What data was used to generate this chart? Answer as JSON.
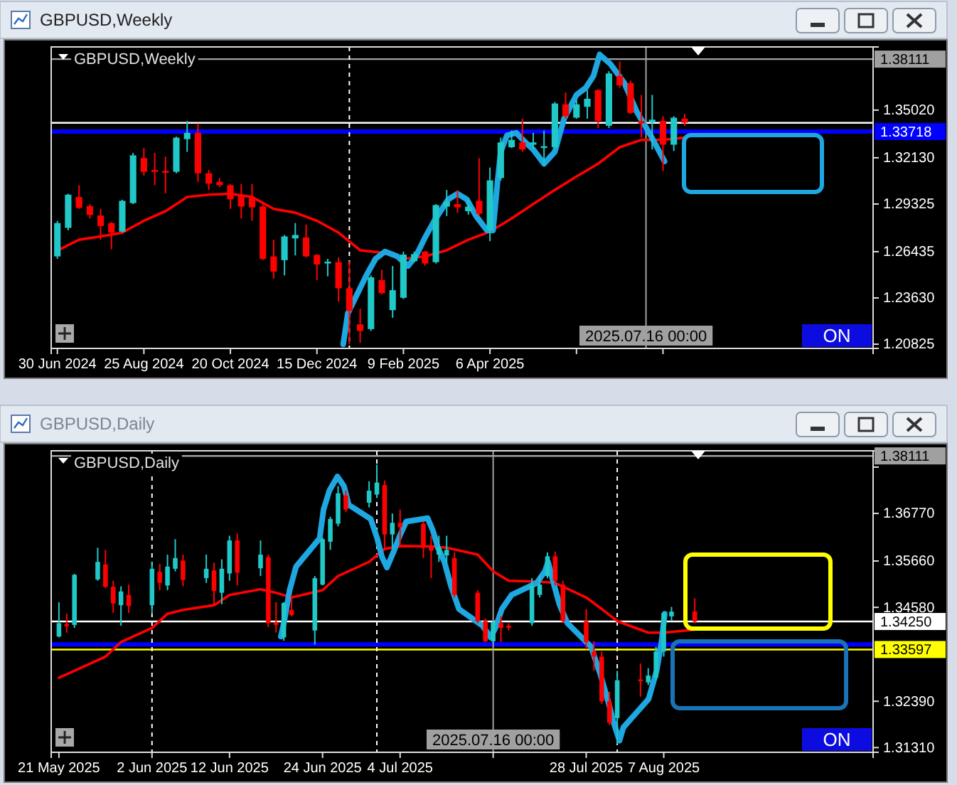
{
  "chart_data": [
    {
      "type": "candlestick",
      "title": "GBPUSD,Weekly",
      "x": [
        "2024-06-30",
        "2024-07-07",
        "2024-07-14",
        "2024-07-21",
        "2024-07-28",
        "2024-08-04",
        "2024-08-11",
        "2024-08-18",
        "2024-08-25",
        "2024-09-01",
        "2024-09-08",
        "2024-09-15",
        "2024-09-22",
        "2024-09-29",
        "2024-10-06",
        "2024-10-13",
        "2024-10-20",
        "2024-10-27",
        "2024-11-03",
        "2024-11-10",
        "2024-11-17",
        "2024-11-24",
        "2024-12-01",
        "2024-12-08",
        "2024-12-15",
        "2024-12-22",
        "2024-12-29",
        "2025-01-05",
        "2025-01-12",
        "2025-01-19",
        "2025-01-26",
        "2025-02-02",
        "2025-02-09",
        "2025-02-16",
        "2025-02-23",
        "2025-03-02",
        "2025-03-09",
        "2025-03-16",
        "2025-03-23",
        "2025-03-30",
        "2025-04-06",
        "2025-04-13",
        "2025-04-20",
        "2025-04-27",
        "2025-05-04",
        "2025-05-11",
        "2025-05-18",
        "2025-05-25",
        "2025-06-01",
        "2025-06-08",
        "2025-06-15",
        "2025-06-22",
        "2025-06-29",
        "2025-07-06",
        "2025-07-13",
        "2025-07-20",
        "2025-07-27",
        "2025-08-03",
        "2025-08-10"
      ],
      "ohlc": [
        [
          1.2615,
          1.283,
          1.26,
          1.2817
        ],
        [
          1.2788,
          1.2995,
          1.2773,
          1.2989
        ],
        [
          1.2975,
          1.3047,
          1.2903,
          1.2909
        ],
        [
          1.292,
          1.2932,
          1.2845,
          1.2866
        ],
        [
          1.2863,
          1.2903,
          1.2716,
          1.2799
        ],
        [
          1.2817,
          1.2823,
          1.2658,
          1.2759
        ],
        [
          1.2765,
          1.2958,
          1.2759,
          1.2952
        ],
        [
          1.2938,
          1.3243,
          1.2932,
          1.3228
        ],
        [
          1.3211,
          1.3272,
          1.3104,
          1.3128
        ],
        [
          1.3139,
          1.3243,
          1.3047,
          1.3128
        ],
        [
          1.3133,
          1.322,
          1.2998,
          1.3122
        ],
        [
          1.3128,
          1.3341,
          1.3119,
          1.3335
        ],
        [
          1.3326,
          1.3436,
          1.3249,
          1.3364
        ],
        [
          1.3364,
          1.3421,
          1.3067,
          1.3119
        ],
        [
          1.3119,
          1.3139,
          1.3018,
          1.3056
        ],
        [
          1.3067,
          1.309,
          1.3035,
          1.3047
        ],
        [
          1.3047,
          1.3053,
          1.2903,
          1.2961
        ],
        [
          1.2989,
          1.3053,
          1.2845,
          1.2917
        ],
        [
          1.2975,
          1.3053,
          1.2831,
          1.2912
        ],
        [
          1.2917,
          1.2932,
          1.2592,
          1.26
        ],
        [
          1.2615,
          1.2716,
          1.248,
          1.2523
        ],
        [
          1.2592,
          1.2745,
          1.25,
          1.2736
        ],
        [
          1.2724,
          1.2817,
          1.2621,
          1.2745
        ],
        [
          1.273,
          1.2808,
          1.2609,
          1.2615
        ],
        [
          1.2624,
          1.2629,
          1.2471,
          1.2566
        ],
        [
          1.2572,
          1.26,
          1.2494,
          1.2583
        ],
        [
          1.258,
          1.2609,
          1.2341,
          1.2422
        ],
        [
          1.2422,
          1.2586,
          1.2082,
          1.2284
        ],
        [
          1.2203,
          1.2298,
          1.2091,
          1.2163
        ],
        [
          1.2174,
          1.25,
          1.2163,
          1.2488
        ],
        [
          1.2471,
          1.2534,
          1.2385,
          1.2393
        ],
        [
          1.2289,
          1.2557,
          1.2243,
          1.241
        ],
        [
          1.2364,
          1.2644,
          1.2356,
          1.2626
        ],
        [
          1.2586,
          1.2644,
          1.258,
          1.2629
        ],
        [
          1.2644,
          1.2649,
          1.2557,
          1.2572
        ],
        [
          1.258,
          1.2932,
          1.2572,
          1.2926
        ],
        [
          1.2917,
          1.3018,
          1.286,
          1.2946
        ],
        [
          1.2932,
          1.3018,
          1.288,
          1.2912
        ],
        [
          1.2889,
          1.2961,
          1.2868,
          1.2917
        ],
        [
          1.2952,
          1.3211,
          1.286,
          1.2874
        ],
        [
          1.2773,
          1.3154,
          1.2707,
          1.3076
        ],
        [
          1.309,
          1.3335,
          1.3076,
          1.3306
        ],
        [
          1.3277,
          1.3378,
          1.3272,
          1.3321
        ],
        [
          1.3306,
          1.345,
          1.3249,
          1.3263
        ],
        [
          1.3292,
          1.3364,
          1.3263,
          1.3306
        ],
        [
          1.3272,
          1.3378,
          1.3162,
          1.3283
        ],
        [
          1.3277,
          1.3551,
          1.3272,
          1.3542
        ],
        [
          1.3537,
          1.3609,
          1.345,
          1.3465
        ],
        [
          1.3456,
          1.3565,
          1.345,
          1.3537
        ],
        [
          1.3522,
          1.3623,
          1.345,
          1.3571
        ],
        [
          1.3623,
          1.3629,
          1.3393,
          1.3436
        ],
        [
          1.3407,
          1.3738,
          1.3393,
          1.3724
        ],
        [
          1.3709,
          1.3796,
          1.3637,
          1.3652
        ],
        [
          1.3666,
          1.368,
          1.3479,
          1.3485
        ],
        [
          1.3436,
          1.3594,
          1.3335,
          1.3421
        ],
        [
          1.3427,
          1.3594,
          1.3263,
          1.3444
        ],
        [
          1.3436,
          1.3465,
          1.3133,
          1.3292
        ],
        [
          1.3292,
          1.3465,
          1.3254,
          1.3456
        ],
        [
          1.345,
          1.3479,
          1.3407,
          1.3425
        ]
      ],
      "colors": [
        "#20c8c8",
        "#20c8c8",
        "#ff0000",
        "#ff0000",
        "#ff0000",
        "#ff0000",
        "#20c8c8",
        "#20c8c8",
        "#ff0000",
        "#ff0000",
        "#ff0000",
        "#20c8c8",
        "#20c8c8",
        "#ff0000",
        "#ff0000",
        "#ff0000",
        "#ff0000",
        "#ff0000",
        "#ff0000",
        "#ff0000",
        "#ff0000",
        "#20c8c8",
        "#20c8c8",
        "#ff0000",
        "#ff0000",
        "#20c8c8",
        "#ff0000",
        "#ff0000",
        "#ff0000",
        "#20c8c8",
        "#ff0000",
        "#20c8c8",
        "#20c8c8",
        "#20c8c8",
        "#ff0000",
        "#20c8c8",
        "#20c8c8",
        "#ff0000",
        "#20c8c8",
        "#ff0000",
        "#20c8c8",
        "#20c8c8",
        "#20c8c8",
        "#ff0000",
        "#20c8c8",
        "#20c8c8",
        "#20c8c8",
        "#ff0000",
        "#20c8c8",
        "#20c8c8",
        "#ff0000",
        "#20c8c8",
        "#ff0000",
        "#ff0000",
        "#ff0000",
        "#20c8c8",
        "#ff0000",
        "#20c8c8",
        "#ff0000"
      ],
      "series": [
        {
          "type": "line",
          "color": "#ff0000",
          "x": [
            "2024-06-30",
            "2024-07-14",
            "2024-07-28",
            "2024-08-11",
            "2024-08-25",
            "2024-09-08",
            "2024-09-22",
            "2024-10-06",
            "2024-10-20",
            "2024-11-03",
            "2024-11-17",
            "2024-12-01",
            "2024-12-15",
            "2024-12-29",
            "2025-01-12",
            "2025-01-26",
            "2025-02-09",
            "2025-02-23",
            "2025-03-09",
            "2025-03-23",
            "2025-04-06",
            "2025-04-20",
            "2025-05-04",
            "2025-05-18",
            "2025-06-01",
            "2025-06-15",
            "2025-06-29",
            "2025-07-13",
            "2025-07-27",
            "2025-08-10"
          ],
          "values": [
            1.265,
            1.2716,
            1.2736,
            1.2759,
            1.2831,
            1.2889,
            1.2975,
            1.2989,
            1.2995,
            1.2975,
            1.2903,
            1.288,
            1.2831,
            1.2759,
            1.2652,
            1.2638,
            1.26,
            1.2615,
            1.2652,
            1.2716,
            1.2765,
            1.2845,
            1.2932,
            1.3018,
            1.3099,
            1.3177,
            1.3277,
            1.3321,
            1.3321,
            1.3335
          ]
        },
        {
          "type": "line",
          "color": "#1ea7e1",
          "x": [
            "2025-01-01",
            "2025-01-04",
            "2025-01-10",
            "2025-01-16",
            "2025-01-22",
            "2025-01-28",
            "2025-02-05",
            "2025-02-12",
            "2025-02-17",
            "2025-02-23",
            "2025-03-01",
            "2025-03-10",
            "2025-03-16",
            "2025-03-22",
            "2025-03-28",
            "2025-04-04",
            "2025-04-08",
            "2025-04-11",
            "2025-04-13",
            "2025-04-17",
            "2025-04-23",
            "2025-04-29",
            "2025-05-04",
            "2025-05-11",
            "2025-05-18",
            "2025-05-24",
            "2025-06-01",
            "2025-06-07",
            "2025-06-12",
            "2025-06-16",
            "2025-06-23",
            "2025-07-02",
            "2025-07-10",
            "2025-07-19",
            "2025-07-28"
          ],
          "values": [
            1.2082,
            1.2269,
            1.2385,
            1.25,
            1.2601,
            1.2644,
            1.2615,
            1.2557,
            1.2615,
            1.273,
            1.2831,
            1.2961,
            1.2995,
            1.2961,
            1.286,
            1.2773,
            1.2773,
            1.3076,
            1.3249,
            1.3349,
            1.3364,
            1.3306,
            1.3263,
            1.3177,
            1.3249,
            1.345,
            1.3594,
            1.3637,
            1.3709,
            1.3839,
            1.3781,
            1.3666,
            1.3493,
            1.3349,
            1.3191
          ]
        }
      ],
      "xlim": [
        "2024-06-26",
        "2025-12-10"
      ],
      "xticks": [
        {
          "value": "2024-06-30",
          "label": "30 Jun 2024"
        },
        {
          "value": "2024-08-25",
          "label": "25 Aug 2024"
        },
        {
          "value": "2024-10-20",
          "label": "20 Oct 2024"
        },
        {
          "value": "2024-12-15",
          "label": "15 Dec 2024"
        },
        {
          "value": "2025-02-09",
          "label": "9 Feb 2025"
        },
        {
          "value": "2025-04-06",
          "label": "6 Apr 2025"
        },
        {
          "value": "2025-06-01",
          "label": null
        },
        {
          "value": "2025-07-27",
          "label": null
        }
      ],
      "ylim": [
        1.2057,
        1.3885
      ],
      "yticks": [
        {
          "value": 1.3502,
          "label": "1.35020"
        },
        {
          "value": 1.3213,
          "label": "1.32130"
        },
        1.29325,
        1.26435,
        {
          "value": 1.2363,
          "label": "1.23630"
        },
        1.20825
      ],
      "ref_lines": [
        {
          "axis": "y",
          "value": 1.38111,
          "label": "1.38111",
          "color": "#a0a0a0"
        },
        {
          "axis": "y",
          "value": 1.3425,
          "label": null,
          "color": "#ffffff"
        },
        {
          "axis": "y",
          "value": 1.33718,
          "label": "1.33718",
          "color": "#0000ff"
        },
        {
          "axis": "x",
          "value": "2025-01-05",
          "label": null,
          "color": "#ffffff",
          "line_style": "dashed"
        },
        {
          "axis": "x",
          "value": "2025-07-16",
          "label": "2025.07.16 00:00",
          "color": "#a0a0a0"
        }
      ],
      "annotations": [
        "ON"
      ]
    },
    {
      "type": "candlestick",
      "title": "GBPUSD,Daily",
      "x": [
        "2025-05-21",
        "2025-05-22",
        "2025-05-23",
        "2025-05-26",
        "2025-05-27",
        "2025-05-28",
        "2025-05-29",
        "2025-05-30",
        "2025-06-02",
        "2025-06-03",
        "2025-06-04",
        "2025-06-05",
        "2025-06-06",
        "2025-06-09",
        "2025-06-10",
        "2025-06-11",
        "2025-06-12",
        "2025-06-13",
        "2025-06-16",
        "2025-06-17",
        "2025-06-18",
        "2025-06-19",
        "2025-06-20",
        "2025-06-23",
        "2025-06-24",
        "2025-06-25",
        "2025-06-26",
        "2025-06-27",
        "2025-06-30",
        "2025-07-01",
        "2025-07-02",
        "2025-07-03",
        "2025-07-04",
        "2025-07-07",
        "2025-07-08",
        "2025-07-09",
        "2025-07-10",
        "2025-07-11",
        "2025-07-14",
        "2025-07-15",
        "2025-07-16",
        "2025-07-17",
        "2025-07-18",
        "2025-07-21",
        "2025-07-22",
        "2025-07-23",
        "2025-07-24",
        "2025-07-25",
        "2025-07-28",
        "2025-07-29",
        "2025-07-30",
        "2025-07-31",
        "2025-08-01",
        "2025-08-04",
        "2025-08-05",
        "2025-08-06",
        "2025-08-07",
        "2025-08-08",
        "2025-08-11"
      ],
      "ohlc": [
        [
          1.339,
          1.347,
          1.3388,
          1.3421
        ],
        [
          1.3419,
          1.3443,
          1.3399,
          1.3414
        ],
        [
          1.3417,
          1.3536,
          1.341,
          1.3534
        ],
        [
          1.3523,
          1.3597,
          1.352,
          1.3564
        ],
        [
          1.3558,
          1.3592,
          1.3503,
          1.3506
        ],
        [
          1.3506,
          1.352,
          1.3445,
          1.3467
        ],
        [
          1.3463,
          1.3507,
          1.3415,
          1.3495
        ],
        [
          1.3487,
          1.3511,
          1.3445,
          1.3461
        ],
        [
          1.3463,
          1.3564,
          1.3443,
          1.3548
        ],
        [
          1.3541,
          1.3559,
          1.3498,
          1.3515
        ],
        [
          1.3509,
          1.3581,
          1.3498,
          1.3553
        ],
        [
          1.3548,
          1.3617,
          1.3542,
          1.3573
        ],
        [
          1.3567,
          1.3581,
          1.3507,
          1.3522
        ],
        [
          1.3526,
          1.3581,
          1.3515,
          1.3548
        ],
        [
          1.3544,
          1.3562,
          1.3465,
          1.3496
        ],
        [
          1.3492,
          1.357,
          1.3465,
          1.3548
        ],
        [
          1.3537,
          1.3625,
          1.352,
          1.3614
        ],
        [
          1.3614,
          1.363,
          1.3509,
          1.3539
        ],
        [
          1.3549,
          1.3614,
          1.3531,
          1.3581
        ],
        [
          1.3575,
          1.3581,
          1.3412,
          1.3421
        ],
        [
          1.3423,
          1.347,
          1.3399,
          1.3417
        ],
        [
          1.3388,
          1.347,
          1.338,
          1.3468
        ],
        [
          1.3452,
          1.3487,
          1.3437,
          1.344
        ],
        [
          1.3404,
          1.3531,
          1.3371,
          1.3526
        ],
        [
          1.3511,
          1.362,
          1.3509,
          1.3617
        ],
        [
          1.3611,
          1.3669,
          1.3592,
          1.3664
        ],
        [
          1.3653,
          1.3741,
          1.3647,
          1.3724
        ],
        [
          1.3719,
          1.373,
          1.368,
          1.3686
        ],
        [
          1.3702,
          1.3752,
          1.3691,
          1.373
        ],
        [
          1.3721,
          1.3791,
          1.3713,
          1.3749
        ],
        [
          1.3743,
          1.3754,
          1.3592,
          1.3628
        ],
        [
          1.3628,
          1.3677,
          1.3597,
          1.3655
        ],
        [
          1.3655,
          1.3686,
          1.3597,
          1.3645
        ],
        [
          1.3653,
          1.3658,
          1.3573,
          1.3597
        ],
        [
          1.3603,
          1.3625,
          1.3526,
          1.359
        ],
        [
          1.3581,
          1.3625,
          1.3564,
          1.3597
        ],
        [
          1.3579,
          1.3625,
          1.3562,
          1.3592
        ],
        [
          1.3573,
          1.3586,
          1.3481,
          1.3487
        ],
        [
          1.3492,
          1.3498,
          1.3421,
          1.3426
        ],
        [
          1.3426,
          1.3432,
          1.3377,
          1.3379
        ],
        [
          1.3379,
          1.3426,
          1.3375,
          1.3423
        ],
        [
          1.3421,
          1.3437,
          1.3377,
          1.341
        ],
        [
          1.3415,
          1.3421,
          1.3404,
          1.341
        ],
        [
          1.3421,
          1.3526,
          1.3415,
          1.3509
        ],
        [
          1.3487,
          1.3531,
          1.3481,
          1.3511
        ],
        [
          1.3531,
          1.3586,
          1.3526,
          1.3577
        ],
        [
          1.3577,
          1.3588,
          1.3509,
          1.352
        ],
        [
          1.3511,
          1.352,
          1.3421,
          1.3426
        ],
        [
          1.3426,
          1.3454,
          1.336,
          1.3377
        ],
        [
          1.3355,
          1.3379,
          1.331,
          1.3343
        ],
        [
          1.3343,
          1.3355,
          1.3233,
          1.3239
        ],
        [
          1.3239,
          1.3261,
          1.3183,
          1.3189
        ],
        [
          1.32,
          1.331,
          1.3139,
          1.3288
        ],
        [
          1.329,
          1.3327,
          1.325,
          1.3286
        ],
        [
          1.3283,
          1.3316,
          1.3277,
          1.3299
        ],
        [
          1.3294,
          1.3366,
          1.3288,
          1.3355
        ],
        [
          1.3355,
          1.3448,
          1.3343,
          1.3445
        ],
        [
          1.3437,
          1.3459,
          1.3426,
          1.3448
        ],
        [
          1.3448,
          1.3479,
          1.3421,
          1.3425
        ]
      ],
      "colors": [
        "#20c8c8",
        "#ff0000",
        "#20c8c8",
        "#20c8c8",
        "#ff0000",
        "#ff0000",
        "#20c8c8",
        "#ff0000",
        "#20c8c8",
        "#ff0000",
        "#20c8c8",
        "#20c8c8",
        "#ff0000",
        "#20c8c8",
        "#ff0000",
        "#20c8c8",
        "#20c8c8",
        "#ff0000",
        "#20c8c8",
        "#ff0000",
        "#ff0000",
        "#20c8c8",
        "#ff0000",
        "#20c8c8",
        "#20c8c8",
        "#20c8c8",
        "#20c8c8",
        "#ff0000",
        "#20c8c8",
        "#20c8c8",
        "#ff0000",
        "#20c8c8",
        "#ff0000",
        "#ff0000",
        "#ff0000",
        "#20c8c8",
        "#20c8c8",
        "#ff0000",
        "#ff0000",
        "#ff0000",
        "#20c8c8",
        "#ff0000",
        "#ff0000",
        "#20c8c8",
        "#20c8c8",
        "#20c8c8",
        "#ff0000",
        "#ff0000",
        "#ff0000",
        "#ff0000",
        "#ff0000",
        "#ff0000",
        "#20c8c8",
        "#ff0000",
        "#20c8c8",
        "#20c8c8",
        "#20c8c8",
        "#20c8c8",
        "#ff0000"
      ],
      "series": [
        {
          "type": "line",
          "color": "#ff0000",
          "x": [
            "2025-05-21",
            "2025-05-23",
            "2025-05-27",
            "2025-05-29",
            "2025-06-02",
            "2025-06-04",
            "2025-06-06",
            "2025-06-10",
            "2025-06-12",
            "2025-06-16",
            "2025-06-18",
            "2025-06-20",
            "2025-06-24",
            "2025-06-26",
            "2025-06-30",
            "2025-07-02",
            "2025-07-04",
            "2025-07-08",
            "2025-07-10",
            "2025-07-14",
            "2025-07-16",
            "2025-07-18",
            "2025-07-22",
            "2025-07-24",
            "2025-07-28",
            "2025-07-30",
            "2025-08-01",
            "2025-08-05",
            "2025-08-07",
            "2025-08-11"
          ],
          "values": [
            1.3294,
            1.331,
            1.3343,
            1.3377,
            1.341,
            1.3443,
            1.3452,
            1.3463,
            1.3487,
            1.35,
            1.3492,
            1.3481,
            1.3498,
            1.3531,
            1.3564,
            1.3594,
            1.3601,
            1.36,
            1.3597,
            1.3581,
            1.3542,
            1.352,
            1.3518,
            1.3515,
            1.3481,
            1.3454,
            1.3426,
            1.3399,
            1.3399,
            1.3406
          ]
        },
        {
          "type": "line",
          "color": "#1ea7e1",
          "x": [
            "2025-06-18T15:00",
            "2025-06-19T03:00",
            "2025-06-19T18:00",
            "2025-06-20T14:00",
            "2025-06-23T15:00",
            "2025-06-24T03:00",
            "2025-06-24T21:00",
            "2025-06-25T22:00",
            "2025-06-26T18:00",
            "2025-06-27T09:00",
            "2025-06-30T05:00",
            "2025-07-01T01:00",
            "2025-07-01T16:00",
            "2025-07-02T07:00",
            "2025-07-03T03:00",
            "2025-07-03T23:00",
            "2025-07-04T19:00",
            "2025-07-07T13:00",
            "2025-07-08T06:00",
            "2025-07-08T21:00",
            "2025-07-09T17:00",
            "2025-07-10T13:00",
            "2025-07-11T14:00",
            "2025-07-14T15:00",
            "2025-07-15T16:00",
            "2025-07-16T07:00",
            "2025-07-17T03:00",
            "2025-07-18T09:00",
            "2025-07-21T15:00",
            "2025-07-22T16:00",
            "2025-07-23T02:00",
            "2025-07-23T17:00",
            "2025-07-24T13:00",
            "2025-07-25T14:00",
            "2025-07-28T15:00",
            "2025-07-29T21:00",
            "2025-07-30T22:00",
            "2025-07-31T13:00",
            "2025-08-01T07:00",
            "2025-08-01T19:00",
            "2025-08-05T01:00",
            "2025-08-06T02:00",
            "2025-08-06T17:00",
            "2025-08-07T03:00"
          ],
          "values": [
            1.339,
            1.3432,
            1.3498,
            1.3553,
            1.3619,
            1.3686,
            1.373,
            1.3763,
            1.3741,
            1.3697,
            1.3664,
            1.3619,
            1.3575,
            1.3551,
            1.3586,
            1.3625,
            1.3658,
            1.3666,
            1.3636,
            1.3597,
            1.3564,
            1.3509,
            1.3454,
            1.3415,
            1.3388,
            1.341,
            1.3454,
            1.3487,
            1.3515,
            1.3542,
            1.3564,
            1.352,
            1.3465,
            1.3421,
            1.3366,
            1.3299,
            1.3233,
            1.3189,
            1.3147,
            1.3178,
            1.3244,
            1.331,
            1.3377,
            1.3443
          ]
        }
      ],
      "xlim": [
        "2025-05-20",
        "2025-09-03"
      ],
      "xticks": [
        {
          "value": "2025-05-21",
          "label": "21 May 2025"
        },
        {
          "value": "2025-06-02",
          "label": "2 Jun 2025"
        },
        {
          "value": "2025-06-12",
          "label": "12 Jun 2025"
        },
        {
          "value": "2025-06-24",
          "label": "24 Jun 2025"
        },
        {
          "value": "2025-07-04",
          "label": "4 Jul 2025"
        },
        {
          "value": "2025-07-16",
          "label": null
        },
        {
          "value": "2025-07-28",
          "label": "28 Jul 2025"
        },
        {
          "value": "2025-08-07",
          "label": "7 Aug 2025"
        }
      ],
      "ylim": [
        1.312,
        1.3823
      ],
      "yticks": [
        {
          "value": 1.3785,
          "label": null
        },
        {
          "value": 1.3677,
          "label": "1.36770"
        },
        {
          "value": 1.3566,
          "label": "1.35660"
        },
        {
          "value": 1.3458,
          "label": "1.34580"
        },
        {
          "value": 1.3239,
          "label": "1.32390"
        },
        {
          "value": 1.3131,
          "label": "1.31310"
        }
      ],
      "ref_lines": [
        {
          "axis": "y",
          "value": 1.38111,
          "label": "1.38111",
          "color": "#a0a0a0"
        },
        {
          "axis": "y",
          "value": 1.3425,
          "label": "1.34250",
          "color": "#ffffff"
        },
        {
          "axis": "y",
          "value": 1.33718,
          "label": null,
          "color": "#0000ff"
        },
        {
          "axis": "y",
          "value": 1.33597,
          "label": "1.33597",
          "color": "#ffff00"
        },
        {
          "axis": "x",
          "value": "2025-06-02",
          "label": null,
          "color": "#ffffff",
          "line_style": "dashed"
        },
        {
          "axis": "x",
          "value": "2025-07-01",
          "label": null,
          "color": "#ffffff",
          "line_style": "dashed"
        },
        {
          "axis": "x",
          "value": "2025-08-01",
          "label": null,
          "color": "#ffffff",
          "line_style": "dashed"
        },
        {
          "axis": "x",
          "value": "2025-07-16",
          "label": "2025.07.16 00:00",
          "color": "#a0a0a0"
        }
      ],
      "annotations": [
        "ON"
      ]
    }
  ]
}
